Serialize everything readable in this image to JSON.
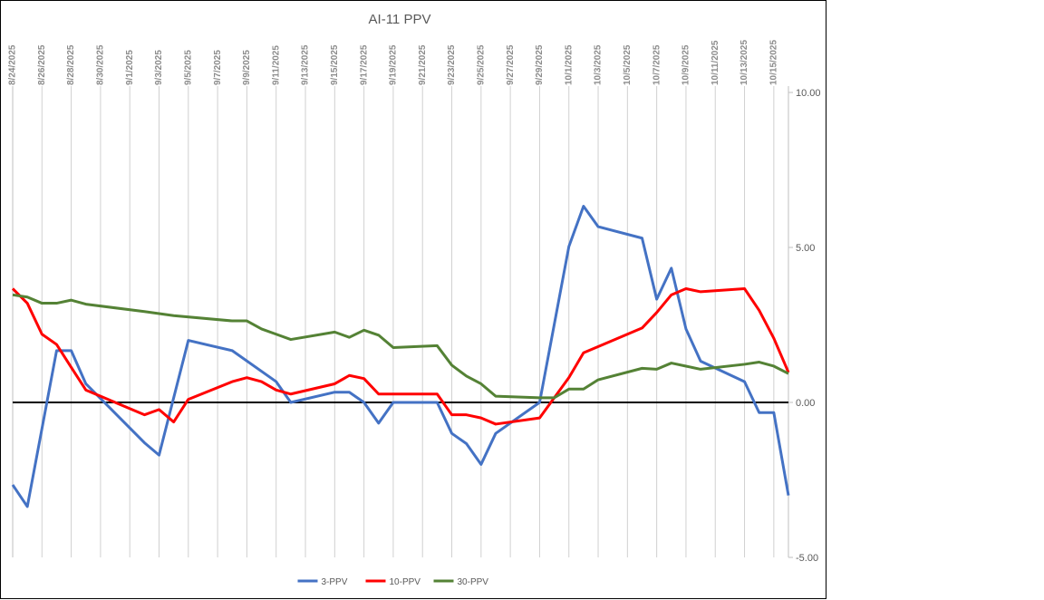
{
  "chart_data": {
    "type": "line",
    "title": "AI-11 PPV",
    "xlim": [
      "8/24/2025",
      "10/16/2025"
    ],
    "xticks": [
      "8/24/2025",
      "8/26/2025",
      "8/28/2025",
      "8/30/2025",
      "9/1/2025",
      "9/3/2025",
      "9/5/2025",
      "9/7/2025",
      "9/9/2025",
      "9/11/2025",
      "9/13/2025",
      "9/15/2025",
      "9/17/2025",
      "9/19/2025",
      "9/21/2025",
      "9/23/2025",
      "9/25/2025",
      "9/27/2025",
      "9/29/2025",
      "10/1/2025",
      "10/3/2025",
      "10/5/2025",
      "10/7/2025",
      "10/9/2025",
      "10/11/2025",
      "10/13/2025",
      "10/15/2025"
    ],
    "ylim": [
      -5,
      10
    ],
    "yticks": [
      {
        "value": 10,
        "label": "10.00"
      },
      {
        "value": 5,
        "label": "5.00"
      },
      {
        "value": 0,
        "label": "0.00"
      },
      {
        "value": -5,
        "label": "-5.00"
      }
    ],
    "grid": "x",
    "legend": "bottom",
    "series": [
      {
        "name": "3-PPV",
        "color": "#4472c4",
        "x": [
          "8/24/2025",
          "8/25/2025",
          "8/27/2025",
          "8/28/2025",
          "8/29/2025",
          "9/2/2025",
          "9/3/2025",
          "9/5/2025",
          "9/8/2025",
          "9/11/2025",
          "9/12/2025",
          "9/15/2025",
          "9/16/2025",
          "9/17/2025",
          "9/18/2025",
          "9/19/2025",
          "9/22/2025",
          "9/23/2025",
          "9/24/2025",
          "9/25/2025",
          "9/26/2025",
          "9/29/2025",
          "10/1/2025",
          "10/2/2025",
          "10/3/2025",
          "10/6/2025",
          "10/7/2025",
          "10/8/2025",
          "10/9/2025",
          "10/10/2025",
          "10/13/2025",
          "10/14/2025",
          "10/15/2025",
          "10/16/2025"
        ],
        "values": [
          -2.66,
          -3.36,
          1.67,
          1.67,
          0.6,
          -1.3,
          -1.7,
          2.0,
          1.67,
          0.67,
          0,
          0.33,
          0.33,
          0,
          -0.67,
          0,
          0,
          -1.0,
          -1.33,
          -2.0,
          -1.0,
          0,
          5.03,
          6.33,
          5.67,
          5.3,
          3.33,
          4.33,
          2.37,
          1.33,
          0.67,
          -0.33,
          -0.33,
          -3.0
        ]
      },
      {
        "name": "10-PPV",
        "color": "#ff0000",
        "x": [
          "8/24/2025",
          "8/25/2025",
          "8/26/2025",
          "8/27/2025",
          "8/28/2025",
          "8/29/2025",
          "8/30/2025",
          "9/2/2025",
          "9/3/2025",
          "9/4/2025",
          "9/5/2025",
          "9/8/2025",
          "9/9/2025",
          "9/10/2025",
          "9/11/2025",
          "9/12/2025",
          "9/15/2025",
          "9/16/2025",
          "9/17/2025",
          "9/18/2025",
          "9/22/2025",
          "9/23/2025",
          "9/24/2025",
          "9/25/2025",
          "9/26/2025",
          "9/29/2025",
          "10/1/2025",
          "10/2/2025",
          "10/6/2025",
          "10/7/2025",
          "10/8/2025",
          "10/9/2025",
          "10/10/2025",
          "10/13/2025",
          "10/14/2025",
          "10/15/2025",
          "10/16/2025"
        ],
        "values": [
          3.67,
          3.2,
          2.2,
          1.87,
          1.13,
          0.4,
          0.2,
          -0.4,
          -0.23,
          -0.63,
          0.1,
          0.67,
          0.8,
          0.67,
          0.4,
          0.27,
          0.6,
          0.87,
          0.77,
          0.27,
          0.27,
          -0.4,
          -0.4,
          -0.5,
          -0.7,
          -0.5,
          0.8,
          1.6,
          2.4,
          2.9,
          3.47,
          3.67,
          3.57,
          3.67,
          2.97,
          2.07,
          0.97
        ]
      },
      {
        "name": "30-PPV",
        "color": "#548235",
        "x": [
          "8/24/2025",
          "8/25/2025",
          "8/26/2025",
          "8/27/2025",
          "8/28/2025",
          "8/29/2025",
          "9/2/2025",
          "9/4/2025",
          "9/8/2025",
          "9/9/2025",
          "9/10/2025",
          "9/11/2025",
          "9/12/2025",
          "9/15/2025",
          "9/16/2025",
          "9/17/2025",
          "9/18/2025",
          "9/19/2025",
          "9/22/2025",
          "9/23/2025",
          "9/24/2025",
          "9/25/2025",
          "9/26/2025",
          "9/29/2025",
          "9/30/2025",
          "10/1/2025",
          "10/2/2025",
          "10/3/2025",
          "10/6/2025",
          "10/7/2025",
          "10/8/2025",
          "10/9/2025",
          "10/10/2025",
          "10/13/2025",
          "10/14/2025",
          "10/15/2025",
          "10/16/2025"
        ],
        "values": [
          3.47,
          3.4,
          3.2,
          3.2,
          3.3,
          3.17,
          2.93,
          2.8,
          2.63,
          2.63,
          2.37,
          2.2,
          2.03,
          2.27,
          2.1,
          2.33,
          2.17,
          1.77,
          1.83,
          1.2,
          0.85,
          0.6,
          0.2,
          0.15,
          0.15,
          0.43,
          0.43,
          0.73,
          1.1,
          1.07,
          1.27,
          1.17,
          1.07,
          1.23,
          1.3,
          1.17,
          0.93
        ]
      }
    ]
  }
}
